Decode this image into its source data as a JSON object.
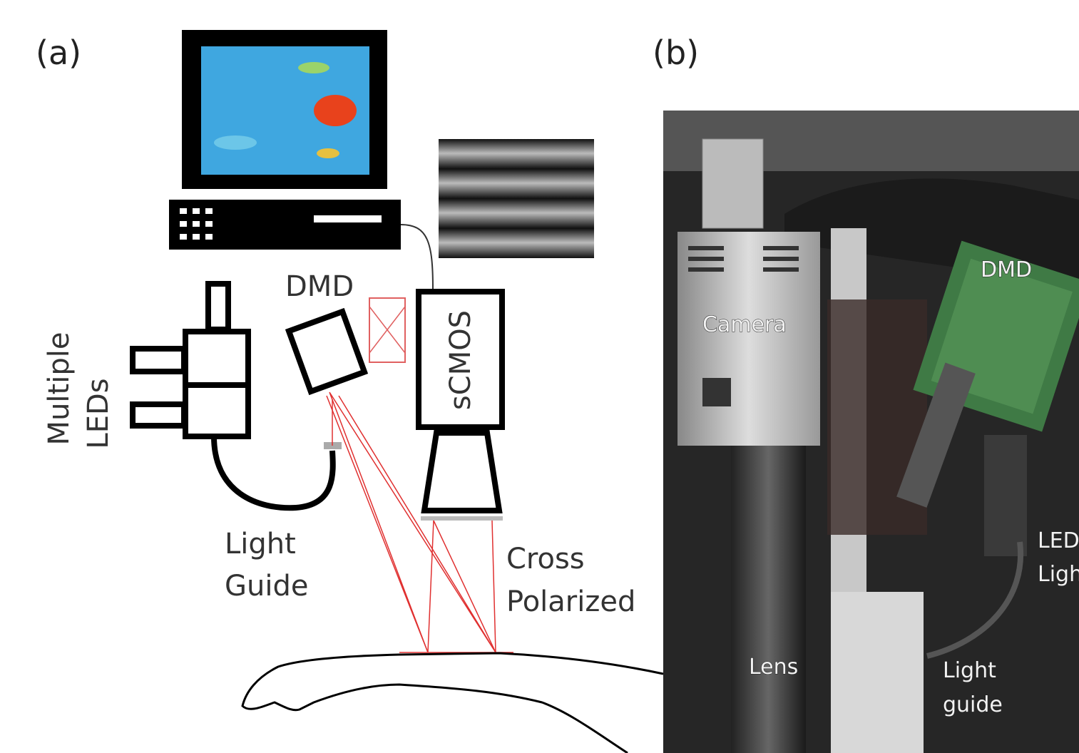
{
  "panel_a": {
    "label": "(a)",
    "dmd": "DMD",
    "camera": "sCMOS",
    "leds": [
      "Multiple",
      "LEDs"
    ],
    "light_guide": [
      "Light",
      "Guide"
    ],
    "polarization": [
      "Cross",
      "Polarized"
    ]
  },
  "panel_b": {
    "label": "(b)",
    "dmd": "DMD",
    "camera": "Camera",
    "lens": "Lens",
    "light_guide": [
      "Light",
      "guide"
    ],
    "led": [
      "LED",
      "Ligh"
    ]
  }
}
